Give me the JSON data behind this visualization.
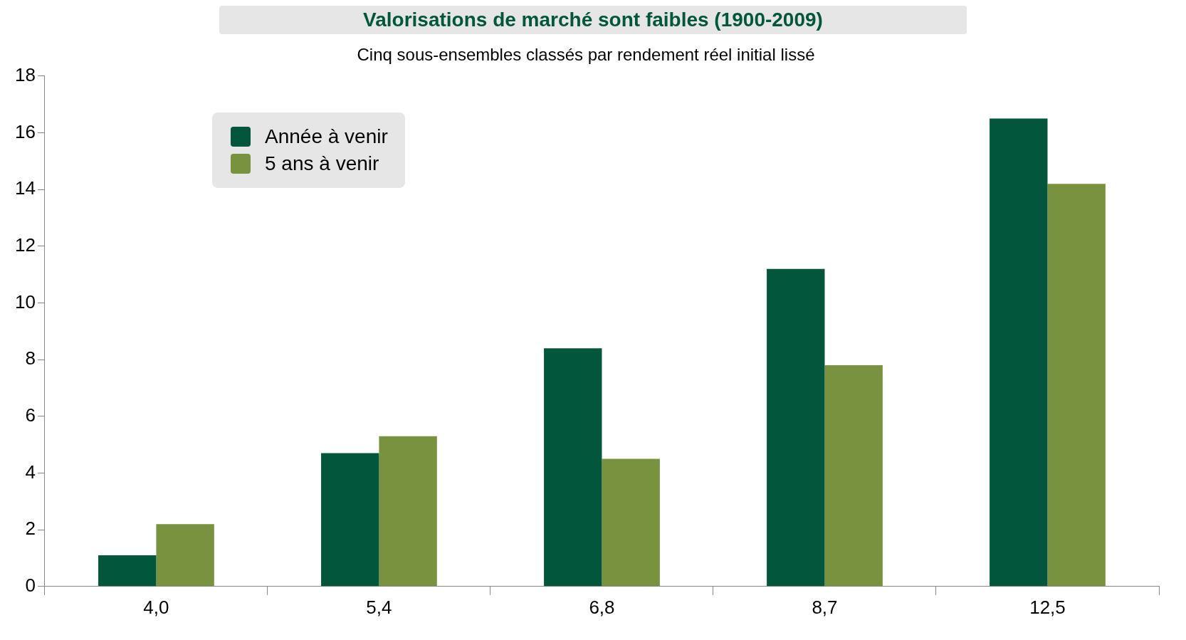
{
  "chart_data": {
    "type": "bar",
    "title": "Valorisations de marché sont faibles (1900-2009)",
    "subtitle": "Cinq sous-ensembles classés par rendement réel initial lissé",
    "categories": [
      "4,0",
      "5,4",
      "6,8",
      "8,7",
      "12,5"
    ],
    "series": [
      {
        "name": "Année à venir",
        "color": "#02563b",
        "values": [
          1.1,
          4.7,
          8.4,
          11.2,
          16.5
        ]
      },
      {
        "name": "5 ans à venir",
        "color": "#78923f",
        "values": [
          2.2,
          5.3,
          4.5,
          7.8,
          14.2
        ]
      }
    ],
    "ylim": [
      0,
      18
    ],
    "yticks": [
      0,
      2,
      4,
      6,
      8,
      10,
      12,
      14,
      16,
      18
    ],
    "grid": false,
    "legend": "top left"
  }
}
